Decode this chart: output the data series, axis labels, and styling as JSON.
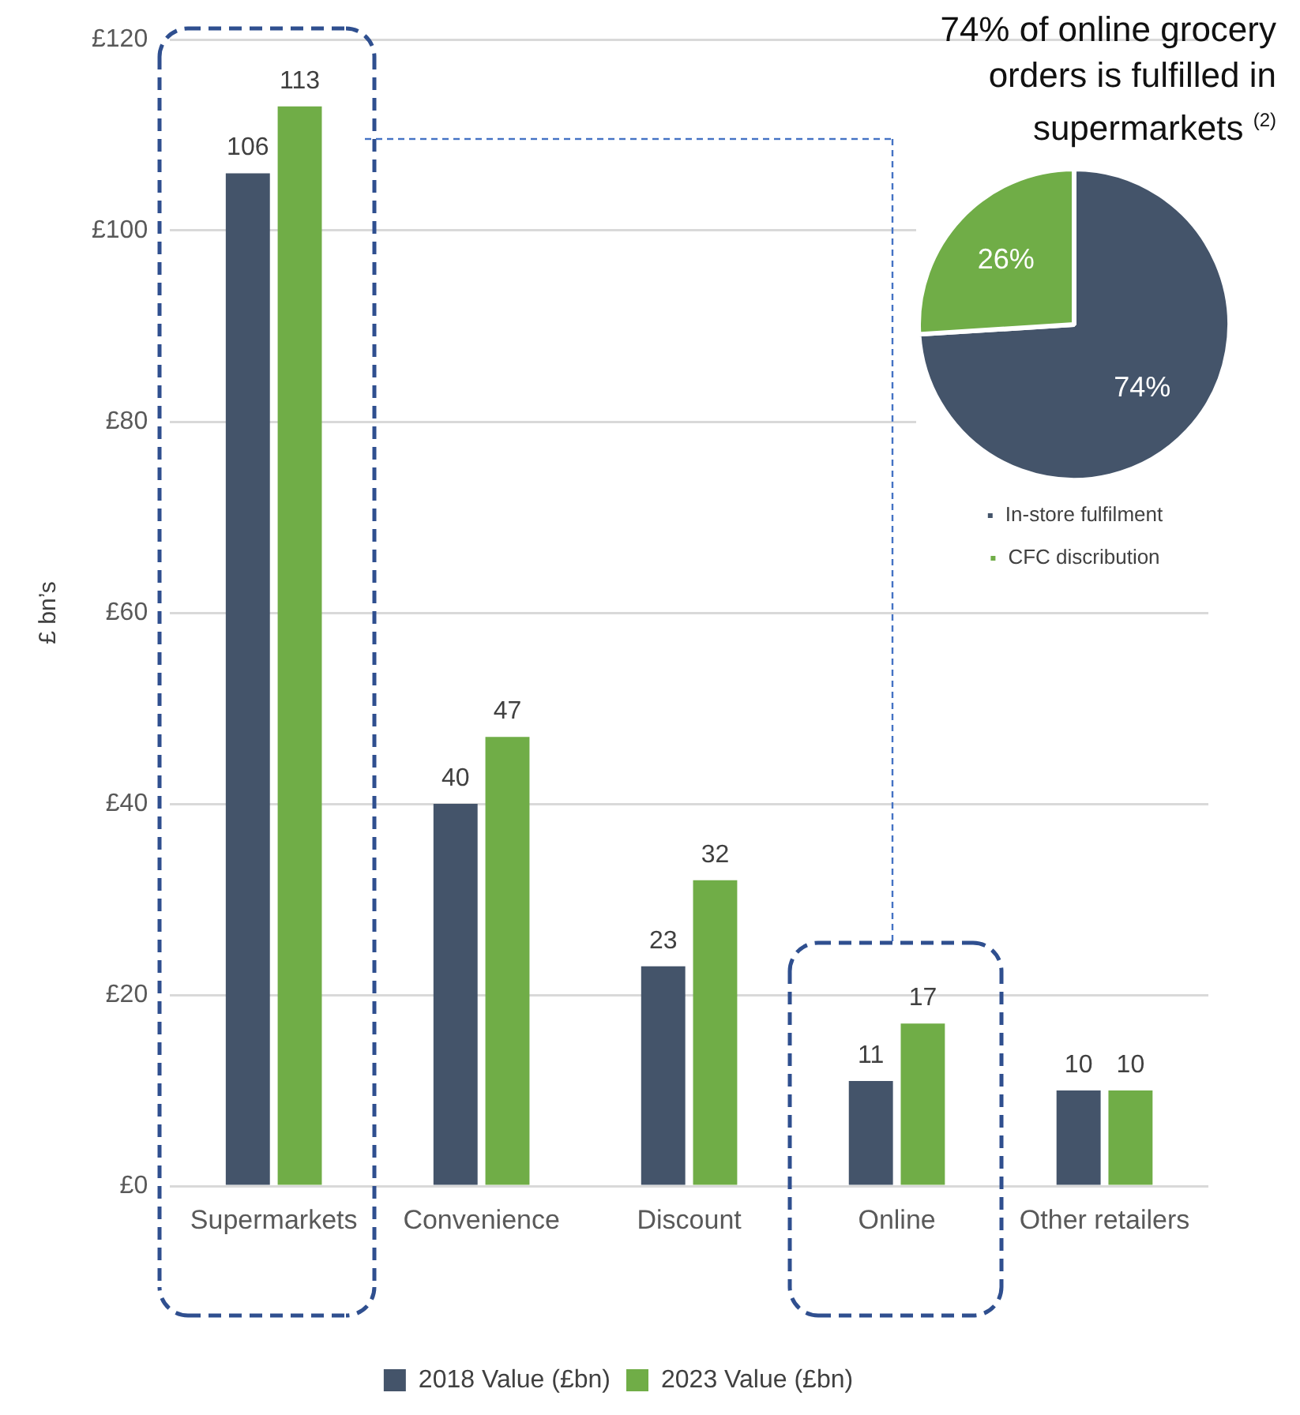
{
  "chart_data": [
    {
      "type": "bar",
      "ylabel": "£ bn’s",
      "categories": [
        "Supermarkets",
        "Convenience",
        "Discount",
        "Online",
        "Other retailers"
      ],
      "series": [
        {
          "name": "2018 Value (£bn)",
          "color": "#44546a",
          "values": [
            106,
            40,
            23,
            11,
            10
          ]
        },
        {
          "name": "2023 Value (£bn)",
          "color": "#70ad47",
          "values": [
            113,
            47,
            32,
            17,
            10
          ]
        }
      ],
      "ylim": [
        0,
        120
      ],
      "yticks": [
        {
          "value": 0,
          "label": "£0"
        },
        {
          "value": 20,
          "label": "£20"
        },
        {
          "value": 40,
          "label": "£40"
        },
        {
          "value": 60,
          "label": "£60"
        },
        {
          "value": 80,
          "label": "£80"
        },
        {
          "value": 100,
          "label": "£100"
        },
        {
          "value": 120,
          "label": "£120"
        }
      ],
      "grid": "y",
      "legend": "bottom",
      "data_labels": true
    },
    {
      "type": "pie",
      "title": "74% of online grocery orders is fulfilled in supermarkets $^{(2)}$",
      "categories": [
        "In-store fulfilment",
        "CFC discribution"
      ],
      "values": [
        74,
        26
      ],
      "value_labels": [
        "74%",
        "26%"
      ],
      "colors": [
        "#44546a",
        "#70ad47"
      ],
      "legend": "bottom"
    }
  ]
}
